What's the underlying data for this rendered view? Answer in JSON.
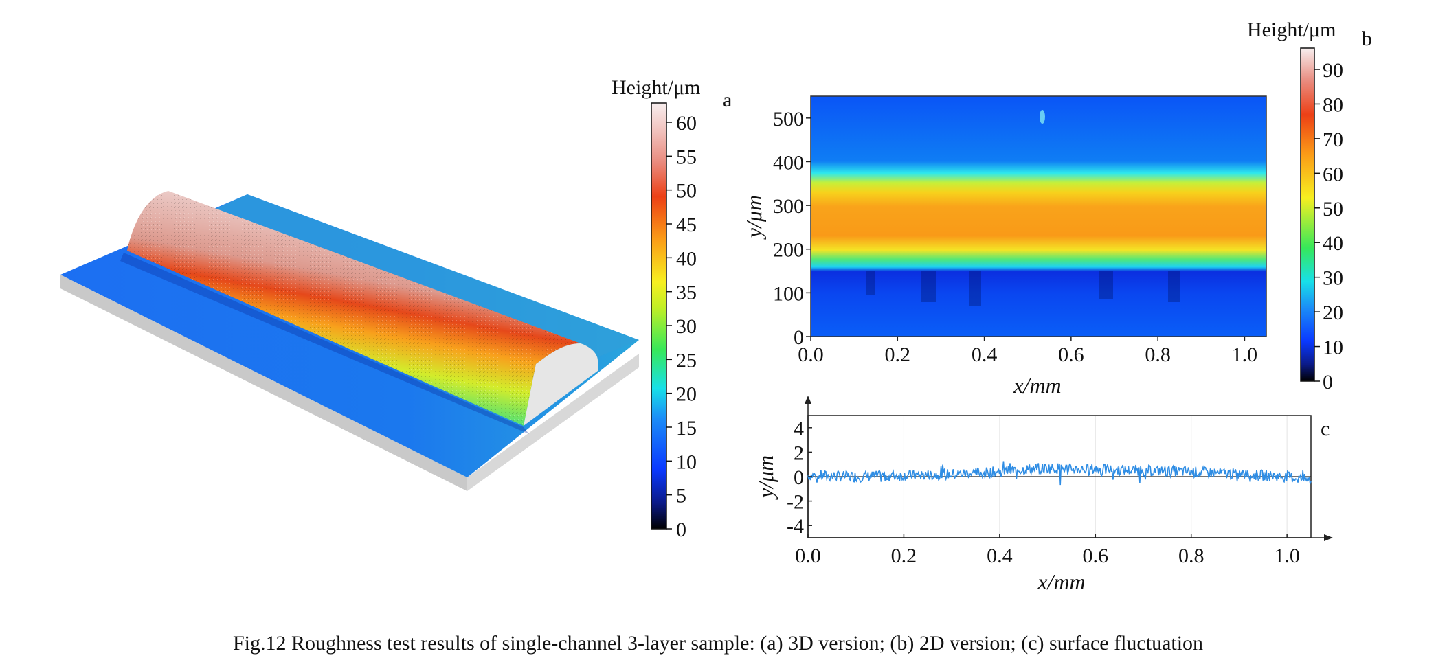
{
  "figure": {
    "caption": "Fig.12  Roughness test results of single-channel 3-layer sample: (a) 3D version; (b) 2D version; (c) surface fluctuation"
  },
  "panel_a": {
    "label": "a",
    "colorbar_title": "Height/μm",
    "colorbar_ticks": [
      "60",
      "55",
      "50",
      "45",
      "40",
      "35",
      "30",
      "25",
      "20",
      "15",
      "10",
      "5",
      "0"
    ]
  },
  "panel_b": {
    "label": "b",
    "colorbar_title": "Height/μm",
    "colorbar_ticks": [
      "90",
      "80",
      "70",
      "60",
      "50",
      "40",
      "30",
      "20",
      "10",
      "0"
    ]
  },
  "panel_c": {
    "label": "c"
  },
  "chart_data": [
    {
      "type": "heatmap",
      "panel": "b",
      "xlabel": "x/mm",
      "ylabel": "y/μm",
      "xlim": [
        0,
        1.05
      ],
      "ylim": [
        0,
        550
      ],
      "x_ticks": [
        "0.0",
        "0.2",
        "0.4",
        "0.6",
        "0.8",
        "1.0"
      ],
      "y_ticks": [
        "0",
        "100",
        "200",
        "300",
        "400",
        "500"
      ],
      "colorbar_range": [
        0,
        95
      ],
      "profile_y": [
        0,
        100,
        140,
        160,
        200,
        260,
        300,
        340,
        380,
        420,
        550
      ],
      "profile_height": [
        10,
        8,
        12,
        22,
        48,
        62,
        63,
        55,
        28,
        14,
        12
      ]
    },
    {
      "type": "line",
      "panel": "c",
      "xlabel": "x/mm",
      "ylabel": "y/μm",
      "xlim": [
        0,
        1.05
      ],
      "ylim": [
        -5,
        5
      ],
      "x_ticks": [
        "0.0",
        "0.2",
        "0.4",
        "0.6",
        "0.8",
        "1.0"
      ],
      "y_ticks": [
        "4",
        "2",
        "0",
        "-2",
        "-4"
      ],
      "series": [
        {
          "color": "#2f8de4",
          "x": [
            0.0,
            0.1,
            0.2,
            0.3,
            0.4,
            0.45,
            0.5,
            0.6,
            0.7,
            0.8,
            0.9,
            1.0,
            1.05
          ],
          "y": [
            0.1,
            0.0,
            0.1,
            0.2,
            0.4,
            0.6,
            0.7,
            0.6,
            0.5,
            0.4,
            0.2,
            0.0,
            -0.3
          ]
        }
      ]
    }
  ]
}
